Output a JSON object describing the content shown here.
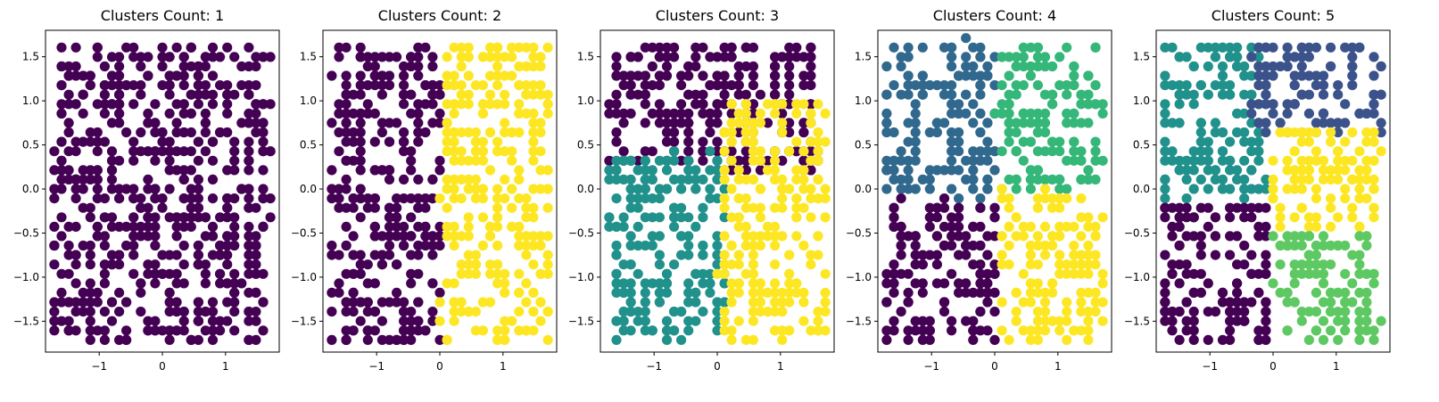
{
  "chart_data": [
    {
      "type": "scatter",
      "title": "Clusters Count: 1",
      "xlim": [
        -1.85,
        1.85
      ],
      "ylim": [
        -1.85,
        1.8
      ],
      "xticks": [
        -1,
        0,
        1
      ],
      "xtick_labels": [
        "−1",
        "0",
        "1"
      ],
      "yticks": [
        -1.5,
        -1.0,
        -0.5,
        0.0,
        0.5,
        1.0,
        1.5
      ],
      "ytick_labels": [
        "−1.5",
        "−1.0",
        "−0.5",
        "0.0",
        "0.5",
        "1.0",
        "1.5"
      ],
      "grid": false,
      "clusters": [
        {
          "color": "#440154",
          "region": {
            "x": [
              -1.72,
              1.72
            ],
            "y": [
              -1.72,
              1.66
            ]
          }
        }
      ]
    },
    {
      "type": "scatter",
      "title": "Clusters Count: 2",
      "xlim": [
        -1.85,
        1.85
      ],
      "ylim": [
        -1.85,
        1.8
      ],
      "xticks": [
        -1,
        0,
        1
      ],
      "xtick_labels": [
        "−1",
        "0",
        "1"
      ],
      "yticks": [
        -1.5,
        -1.0,
        -0.5,
        0.0,
        0.5,
        1.0,
        1.5
      ],
      "ytick_labels": [
        "−1.5",
        "−1.0",
        "−0.5",
        "0.0",
        "0.5",
        "1.0",
        "1.5"
      ],
      "grid": false,
      "clusters": [
        {
          "color": "#440154",
          "region": {
            "x": [
              -1.72,
              0.0
            ],
            "y": [
              -1.72,
              1.66
            ]
          }
        },
        {
          "color": "#fde725",
          "region": {
            "x": [
              0.05,
              1.72
            ],
            "y": [
              -1.72,
              1.66
            ]
          }
        }
      ]
    },
    {
      "type": "scatter",
      "title": "Clusters Count: 3",
      "xlim": [
        -1.85,
        1.85
      ],
      "ylim": [
        -1.85,
        1.8
      ],
      "xticks": [
        -1,
        0,
        1
      ],
      "xtick_labels": [
        "−1",
        "0",
        "1"
      ],
      "yticks": [
        -1.5,
        -1.0,
        -0.5,
        0.0,
        0.5,
        1.0,
        1.5
      ],
      "ytick_labels": [
        "−1.5",
        "−1.0",
        "−0.5",
        "0.0",
        "0.5",
        "1.0",
        "1.5"
      ],
      "grid": false,
      "clusters": [
        {
          "color": "#440154",
          "region": {
            "x": [
              -1.72,
              1.6
            ],
            "y": [
              0.2,
              1.66
            ]
          }
        },
        {
          "color": "#21918c",
          "region": {
            "x": [
              -1.72,
              0.15
            ],
            "y": [
              -1.72,
              0.4
            ]
          }
        },
        {
          "color": "#fde725",
          "region": {
            "x": [
              0.05,
              1.72
            ],
            "y": [
              -1.72,
              1.0
            ]
          }
        }
      ]
    },
    {
      "type": "scatter",
      "title": "Clusters Count: 4",
      "xlim": [
        -1.85,
        1.85
      ],
      "ylim": [
        -1.85,
        1.8
      ],
      "xticks": [
        -1,
        0,
        1
      ],
      "xtick_labels": [
        "−1",
        "0",
        "1"
      ],
      "yticks": [
        -1.5,
        -1.0,
        -0.5,
        0.0,
        0.5,
        1.0,
        1.5
      ],
      "ytick_labels": [
        "−1.5",
        "−1.0",
        "−0.5",
        "0.0",
        "0.5",
        "1.0",
        "1.5"
      ],
      "grid": false,
      "clusters": [
        {
          "color": "#31688e",
          "region": {
            "x": [
              -1.72,
              0.0
            ],
            "y": [
              -0.1,
              1.66
            ]
          }
        },
        {
          "color": "#35b779",
          "region": {
            "x": [
              0.05,
              1.72
            ],
            "y": [
              0.0,
              1.66
            ]
          }
        },
        {
          "color": "#440154",
          "region": {
            "x": [
              -1.72,
              0.05
            ],
            "y": [
              -1.72,
              -0.15
            ]
          }
        },
        {
          "color": "#fde725",
          "region": {
            "x": [
              0.1,
              1.72
            ],
            "y": [
              -1.72,
              -0.05
            ]
          }
        }
      ]
    },
    {
      "type": "scatter",
      "title": "Clusters Count: 5",
      "xlim": [
        -1.85,
        1.85
      ],
      "ylim": [
        -1.85,
        1.8
      ],
      "xticks": [
        -1,
        0,
        1
      ],
      "xtick_labels": [
        "−1",
        "0",
        "1"
      ],
      "yticks": [
        -1.5,
        -1.0,
        -0.5,
        0.0,
        0.5,
        1.0,
        1.5
      ],
      "ytick_labels": [
        "−1.5",
        "−1.0",
        "−0.5",
        "0.0",
        "0.5",
        "1.0",
        "1.5"
      ],
      "grid": false,
      "clusters": [
        {
          "color": "#21918c",
          "region": {
            "x": [
              -1.72,
              -0.1
            ],
            "y": [
              -0.1,
              1.66
            ]
          }
        },
        {
          "color": "#3b528b",
          "region": {
            "x": [
              -0.3,
              1.72
            ],
            "y": [
              0.6,
              1.66
            ]
          }
        },
        {
          "color": "#fde725",
          "region": {
            "x": [
              -0.05,
              1.72
            ],
            "y": [
              -0.45,
              0.7
            ]
          }
        },
        {
          "color": "#440154",
          "region": {
            "x": [
              -1.72,
              -0.05
            ],
            "y": [
              -1.72,
              -0.15
            ]
          }
        },
        {
          "color": "#5ec962",
          "region": {
            "x": [
              0.0,
              1.72
            ],
            "y": [
              -1.72,
              -0.55
            ]
          }
        }
      ]
    }
  ]
}
